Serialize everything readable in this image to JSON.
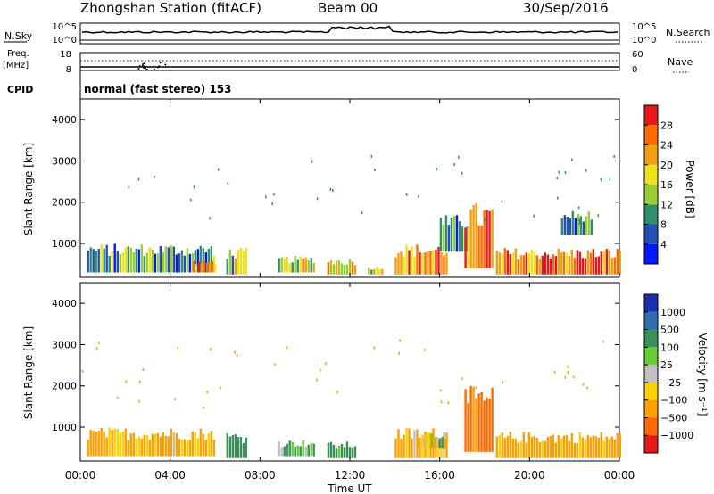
{
  "header": {
    "station": "Zhongshan Station (fitACF)",
    "beam": "Beam 00",
    "date": "30/Sep/2016"
  },
  "strip_labels": {
    "nsky": "N.Sky",
    "nsky_ticks": [
      "10^5",
      "10^0"
    ],
    "nsearch": "N.Search",
    "nsearch_ticks": [
      "10^5",
      "10^0"
    ],
    "freq_top": "Freq.",
    "freq_unit": "[MHz]",
    "freq_ticks": [
      "18",
      "8"
    ],
    "nave": "Nave",
    "nave_ticks": [
      "60",
      "0"
    ],
    "cpid": "CPID",
    "cpid_value": "normal (fast stereo) 153"
  },
  "axes": {
    "ylabel": "Slant Range [km]",
    "xlabel": "Time UT",
    "y_ticks": [
      "1000",
      "2000",
      "3000",
      "4000"
    ],
    "x_ticks": [
      "00:00",
      "04:00",
      "08:00",
      "12:00",
      "16:00",
      "20:00",
      "00:00"
    ]
  },
  "colorbars": {
    "power": {
      "label": "Power [dB]",
      "ticks": [
        "4",
        "8",
        "12",
        "16",
        "20",
        "24",
        "28"
      ],
      "colors": [
        "#0018ff",
        "#2550b3",
        "#2f8f6b",
        "#9acd32",
        "#f0e21a",
        "#f0a010",
        "#ff6a00",
        "#e81818"
      ]
    },
    "velocity": {
      "label": "Velocity [m s⁻¹]",
      "ticks": [
        "1000",
        "500",
        "100",
        "25",
        "−25",
        "−100",
        "−500",
        "−1000"
      ],
      "colors": [
        "#1c2fb0",
        "#2f6fb0",
        "#3a8f5a",
        "#66cc33",
        "#c0c0c0",
        "#ffd000",
        "#ffa000",
        "#ff6a00",
        "#e81818"
      ]
    }
  },
  "chart_data": [
    {
      "type": "heatmap",
      "title": "Power",
      "xlabel": "Time UT",
      "ylabel": "Slant Range [km]",
      "xlim": [
        0,
        24
      ],
      "ylim": [
        180,
        4500
      ],
      "colorbar_label": "Power [dB]",
      "colorbar_range": [
        0,
        30
      ],
      "regions": [
        {
          "t": [
            0.3,
            6.0
          ],
          "range": [
            300,
            1000
          ],
          "value": 9
        },
        {
          "t": [
            5.0,
            6.0
          ],
          "range": [
            300,
            600
          ],
          "value": 22
        },
        {
          "t": [
            6.5,
            7.4
          ],
          "range": [
            250,
            900
          ],
          "value": 14
        },
        {
          "t": [
            8.8,
            10.4
          ],
          "range": [
            300,
            700
          ],
          "value": 16
        },
        {
          "t": [
            11.0,
            12.3
          ],
          "range": [
            250,
            650
          ],
          "value": 18
        },
        {
          "t": [
            12.8,
            13.4
          ],
          "range": [
            250,
            450
          ],
          "value": 16
        },
        {
          "t": [
            14.0,
            16.3
          ],
          "range": [
            250,
            1000
          ],
          "value": 22
        },
        {
          "t": [
            16.0,
            17.2
          ],
          "range": [
            800,
            1700
          ],
          "value": 8
        },
        {
          "t": [
            17.1,
            18.3
          ],
          "range": [
            400,
            2000
          ],
          "value": 24
        },
        {
          "t": [
            18.5,
            24.0
          ],
          "range": [
            250,
            900
          ],
          "value": 25
        },
        {
          "t": [
            21.4,
            22.8
          ],
          "range": [
            1200,
            1800
          ],
          "value": 8
        }
      ]
    },
    {
      "type": "heatmap",
      "title": "Velocity",
      "xlabel": "Time UT",
      "ylabel": "Slant Range [km]",
      "xlim": [
        0,
        24
      ],
      "ylim": [
        180,
        4500
      ],
      "colorbar_label": "Velocity [m s⁻¹]",
      "colorbar_range": [
        -1000,
        1000
      ],
      "regions": [
        {
          "t": [
            0.3,
            6.0
          ],
          "range": [
            300,
            1000
          ],
          "value": -150
        },
        {
          "t": [
            6.5,
            7.4
          ],
          "range": [
            250,
            900
          ],
          "value": 300
        },
        {
          "t": [
            8.8,
            10.4
          ],
          "range": [
            300,
            700
          ],
          "value": 150
        },
        {
          "t": [
            11.0,
            12.3
          ],
          "range": [
            250,
            650
          ],
          "value": 200
        },
        {
          "t": [
            14.0,
            16.3
          ],
          "range": [
            250,
            1000
          ],
          "value": -150
        },
        {
          "t": [
            15.0,
            16.2
          ],
          "range": [
            500,
            900
          ],
          "value": 0
        },
        {
          "t": [
            17.1,
            18.3
          ],
          "range": [
            400,
            2000
          ],
          "value": -600
        },
        {
          "t": [
            18.5,
            24.0
          ],
          "range": [
            250,
            900
          ],
          "value": -200
        }
      ]
    }
  ]
}
